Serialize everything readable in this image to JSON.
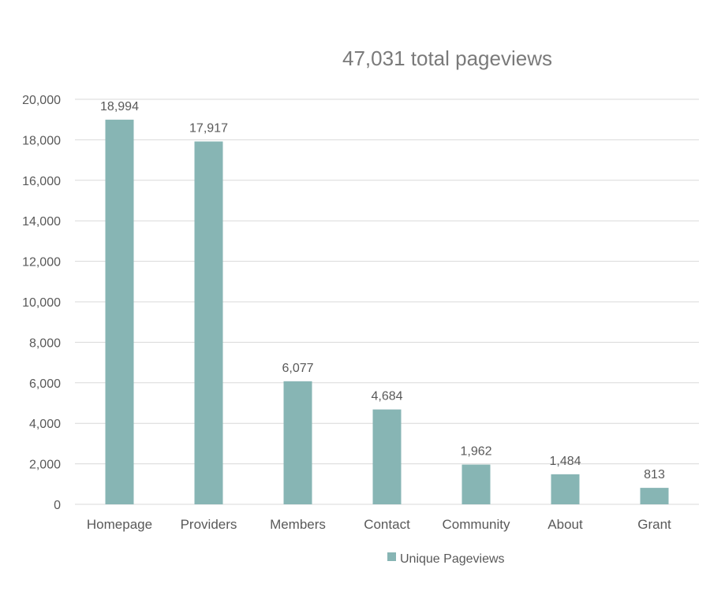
{
  "chart_data": {
    "type": "bar",
    "title": "47,031 total pageviews",
    "categories": [
      "Homepage",
      "Providers",
      "Members",
      "Contact",
      "Community",
      "About",
      "Grant"
    ],
    "series": [
      {
        "name": "Unique Pageviews",
        "values": [
          18994,
          17917,
          6077,
          4684,
          1962,
          1484,
          813
        ],
        "data_labels": [
          "18,994",
          "17,917",
          "6,077",
          "4,684",
          "1,962",
          "1,484",
          "813"
        ],
        "color": "#87b5b4"
      }
    ],
    "y_ticks": [
      "0",
      "2,000",
      "4,000",
      "6,000",
      "8,000",
      "10,000",
      "12,000",
      "14,000",
      "16,000",
      "18,000",
      "20,000"
    ],
    "ylim": [
      0,
      20000
    ],
    "grid": true,
    "legend_position": "bottom"
  }
}
